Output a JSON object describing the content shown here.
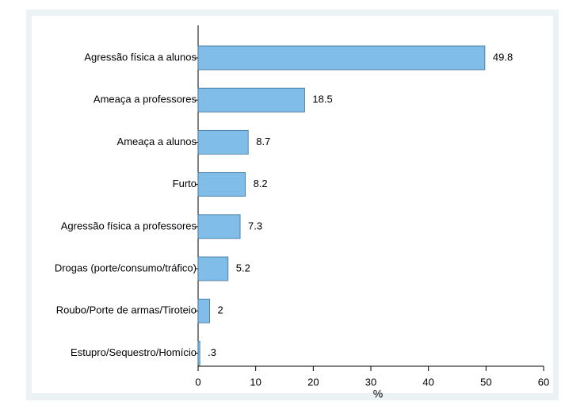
{
  "chart_data": {
    "type": "barh",
    "x_label": "%",
    "categories": [
      "Agressão física a alunos",
      "Ameaça a professores",
      "Ameaça a alunos",
      "Furto",
      "Agressão física a professores",
      "Drogas (porte/consumo/tráfico)",
      "Roubo/Porte de armas/Tiroteio",
      "Estupro/Sequestro/Homício"
    ],
    "values": [
      49.8,
      18.5,
      8.7,
      8.2,
      7.3,
      5.2,
      2,
      0.3
    ],
    "value_labels": [
      "49.8",
      "18.5",
      "8.7",
      "8.2",
      "7.3",
      "5.2",
      "2",
      ".3"
    ],
    "color": "#80bde8",
    "xlim": [
      0,
      60
    ],
    "xticks": [
      0,
      10,
      20,
      30,
      40,
      50,
      60
    ],
    "grid": false
  }
}
